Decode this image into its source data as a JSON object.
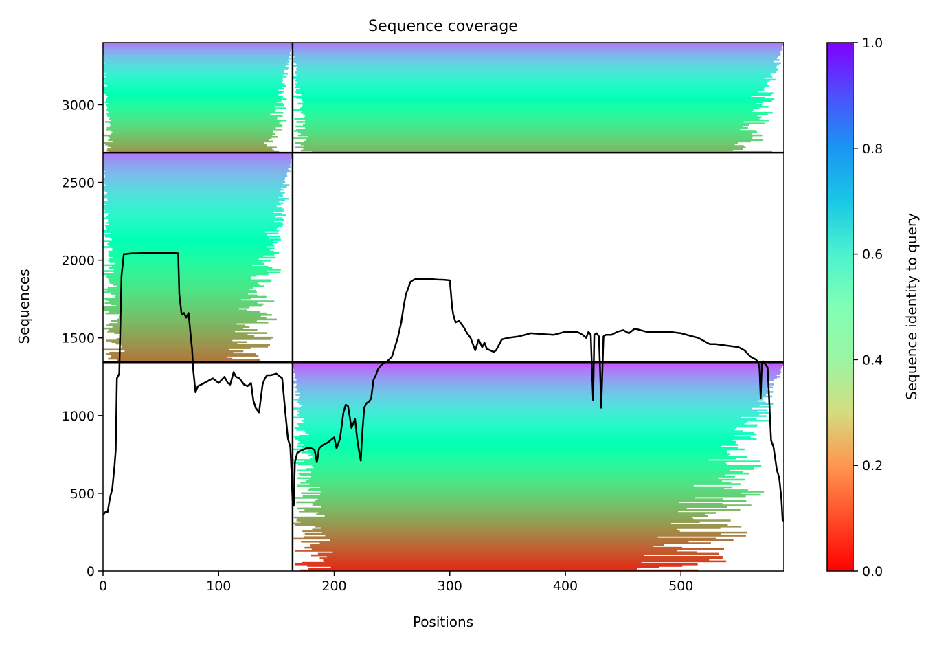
{
  "chart_data": {
    "type": "heatmap",
    "title": "Sequence coverage",
    "xlabel": "Positions",
    "ylabel": "Sequences",
    "xlim": [
      0,
      589
    ],
    "ylim": [
      0,
      3400
    ],
    "xticks": [
      0,
      100,
      200,
      300,
      400,
      500
    ],
    "yticks": [
      0,
      500,
      1000,
      1500,
      2000,
      2500,
      3000
    ],
    "grid": false,
    "colorbar": {
      "label": "Sequence identity to query",
      "range": [
        0,
        1
      ],
      "ticks": [
        "0.0",
        "0.2",
        "0.4",
        "0.6",
        "0.8",
        "1.0"
      ],
      "colormap": "rainbow_r"
    },
    "block_boundaries": {
      "x": [
        164
      ],
      "y": [
        1343,
        2692
      ]
    },
    "blocks": [
      {
        "x": [
          0,
          164
        ],
        "y": [
          2692,
          3400
        ],
        "identity_top": 0.85,
        "identity_bottom": 0.2,
        "fill": 0.85
      },
      {
        "x": [
          164,
          589
        ],
        "y": [
          2692,
          3400
        ],
        "identity_top": 0.85,
        "identity_bottom": 0.25,
        "fill": 0.9
      },
      {
        "x": [
          0,
          164
        ],
        "y": [
          1343,
          2692
        ],
        "identity_top": 0.85,
        "identity_bottom": 0.15,
        "fill": 0.7
      },
      {
        "x": [
          164,
          589
        ],
        "y": [
          0,
          1343
        ],
        "identity_top": 0.9,
        "identity_bottom": 0.05,
        "fill": 0.75
      }
    ],
    "series": [
      {
        "type": "line",
        "color": "#000000",
        "x": [
          0,
          2,
          4,
          6,
          8,
          10,
          11,
          12,
          14,
          16,
          18,
          20,
          25,
          30,
          40,
          50,
          60,
          65,
          66,
          68,
          70,
          72,
          74,
          76,
          77,
          78,
          80,
          82,
          85,
          90,
          95,
          100,
          105,
          108,
          110,
          113,
          115,
          118,
          120,
          122,
          125,
          128,
          130,
          132,
          135,
          138,
          140,
          142,
          145,
          150,
          155,
          158,
          160,
          162,
          163,
          164,
          165,
          166,
          168,
          170,
          173,
          176,
          180,
          183,
          185,
          187,
          190,
          195,
          200,
          202,
          205,
          208,
          210,
          212,
          215,
          218,
          220,
          222,
          223,
          224,
          226,
          228,
          230,
          232,
          234,
          236,
          238,
          240,
          243,
          246,
          250,
          255,
          258,
          260,
          262,
          264,
          266,
          268,
          270,
          272,
          275,
          280,
          285,
          290,
          295,
          300,
          302,
          303,
          305,
          308,
          312,
          315,
          318,
          320,
          322,
          325,
          328,
          330,
          332,
          335,
          338,
          340,
          345,
          350,
          360,
          370,
          380,
          390,
          400,
          410,
          415,
          418,
          420,
          422,
          423,
          424,
          425,
          427,
          429,
          430,
          431,
          433,
          435,
          440,
          445,
          450,
          455,
          460,
          465,
          470,
          480,
          490,
          500,
          510,
          515,
          520,
          525,
          530,
          540,
          550,
          555,
          560,
          565,
          567,
          568,
          569,
          570,
          571,
          573,
          575,
          578,
          580,
          583,
          585,
          587,
          588
        ],
        "y": [
          360,
          380,
          380,
          470,
          530,
          680,
          780,
          1240,
          1270,
          1900,
          2040,
          2040,
          2045,
          2045,
          2048,
          2048,
          2048,
          2045,
          1780,
          1650,
          1660,
          1630,
          1660,
          1500,
          1430,
          1300,
          1150,
          1190,
          1200,
          1220,
          1240,
          1210,
          1250,
          1210,
          1200,
          1280,
          1250,
          1240,
          1220,
          1200,
          1190,
          1210,
          1100,
          1050,
          1020,
          1200,
          1240,
          1260,
          1260,
          1270,
          1240,
          1000,
          850,
          800,
          650,
          460,
          420,
          700,
          760,
          770,
          780,
          790,
          790,
          780,
          700,
          790,
          810,
          830,
          860,
          790,
          850,
          1020,
          1070,
          1060,
          920,
          980,
          840,
          750,
          710,
          860,
          1050,
          1080,
          1090,
          1110,
          1230,
          1260,
          1300,
          1320,
          1340,
          1350,
          1380,
          1500,
          1600,
          1700,
          1780,
          1820,
          1860,
          1870,
          1878,
          1878,
          1880,
          1880,
          1878,
          1875,
          1874,
          1870,
          1700,
          1650,
          1600,
          1610,
          1570,
          1530,
          1500,
          1460,
          1420,
          1490,
          1440,
          1470,
          1430,
          1420,
          1410,
          1420,
          1490,
          1500,
          1510,
          1530,
          1525,
          1520,
          1540,
          1540,
          1520,
          1500,
          1540,
          1520,
          1300,
          1100,
          1520,
          1530,
          1510,
          1300,
          1050,
          1510,
          1520,
          1520,
          1540,
          1550,
          1530,
          1560,
          1550,
          1540,
          1540,
          1540,
          1530,
          1510,
          1500,
          1480,
          1460,
          1460,
          1450,
          1440,
          1420,
          1380,
          1360,
          1340,
          1300,
          1110,
          1330,
          1350,
          1330,
          1310,
          840,
          800,
          650,
          600,
          460,
          320
        ]
      }
    ]
  }
}
